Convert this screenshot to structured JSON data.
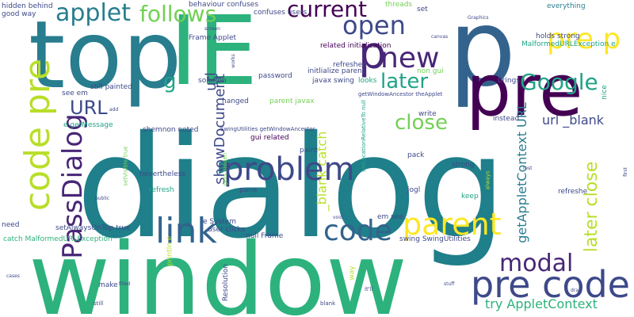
{
  "words": {
    "dialog": "dialog",
    "window": "window",
    "top": "top",
    "ie": "IE",
    "p_big": "p",
    "pre_big": "pre",
    "p_small": "p",
    "code_pre": "code pre",
    "passdialog": "PassDialog",
    "problem": "problem",
    "link": "link",
    "code": "code",
    "parent": "parent",
    "pre_code": "pre code",
    "modal": "modal",
    "applet": "applet",
    "follows": "follows",
    "current": "current",
    "open": "open",
    "new": "new",
    "google": "Google",
    "pre_p": "pre p",
    "later": "later",
    "close": "close",
    "url": "URL",
    "g": "g",
    "showdocument": "showDocument",
    "url_lower": "url",
    "blank_catch": "_blank catch",
    "getappletcontext_url": "getAppletContext URL",
    "url_blank": "url _blank",
    "later_close": "later close",
    "try_appletcontext": "try AppletContext",
    "good_way": "good way",
    "hidden_behind": "hidden behind",
    "behaviour_confuses": "behaviour confuses",
    "confuses_users": "confuses users",
    "threads": "threads",
    "everything": "everything",
    "malformedurlexception_e": "MalformedURLException e",
    "holds_strong": "holds strong",
    "frame_applet": "Frame Applet",
    "related_initialization": "related initialization",
    "refreshed": "refreshed",
    "initlialize_parent": "initlialize parent",
    "non_gui": "non gui",
    "javax_swing": "javax swing",
    "looks": "looks",
    "getwindowancestor_theapplet": "getWindowAncestor theApplet",
    "brings": "brings",
    "nice": "nice",
    "password": "password",
    "still_painted": "still painted",
    "see_em": "see em",
    "solution": "solution",
    "hanged": "hanged",
    "parent_javax": "parent javax",
    "e_getmessage": "e getMessage",
    "shemnon_noted": "shemnon noted",
    "swingutilities_getwindowancestor": "SwingUtilities getWindowAncestor",
    "write": "write",
    "instead": "instead",
    "refreshe": "refreshe",
    "gui_related": "gui related",
    "paint": "paint",
    "pack": "pack",
    "strong": "strong",
    "always": "always",
    "nevertheless": "nevertheless",
    "refresh": "refresh",
    "gets_hidden": "gets hidden",
    "setvisible_true": "setVisible true",
    "pane": "pane",
    "setlocationrelativeto_null": "setLocationRelativeTo null",
    "jogl": "jogl",
    "keep": "keep",
    "need": "need",
    "setalwaysontop_true": "setAlwaysOnTop true",
    "e_system": "e System",
    "user_clicks": "user clicks",
    "null_frame": "null Frame",
    "em_see": "em see",
    "catch_malformedurlexception": "catch MalformedURLException",
    "swing_swingutilities": "swing SwingUtilities",
    "make": "make",
    "println_e": "println e",
    "resolution": "Resolution",
    "way": "way",
    "still": "still",
    "blank": "blank",
    "itll": "it'll",
    "set": "set",
    "graphics": "Graphics",
    "canvas": "canvas",
    "screen": "screen",
    "works": "works",
    "add": "add",
    "public": "public",
    "void": "void",
    "filled": "filled",
    "stuff": "stuff",
    "draw": "draw",
    "rest": "rest",
    "tiny_a": "cases",
    "tiny_b": "first"
  }
}
